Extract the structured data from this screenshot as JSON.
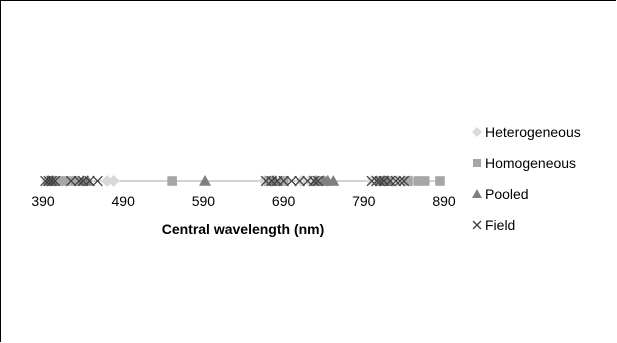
{
  "chart_data": {
    "type": "scatter",
    "title": "",
    "xlabel": "Central wavelength (nm)",
    "ylabel": "",
    "xlim": [
      390,
      890
    ],
    "xticks": [
      390,
      490,
      590,
      690,
      790,
      890
    ],
    "y_constant": 0,
    "legend_position": "right",
    "grid": false,
    "series": [
      {
        "name": "Heterogeneous",
        "marker": "diamond",
        "color": "#d9d9d9",
        "x": [
          395,
          405,
          470,
          478,
          666,
          675,
          712,
          722,
          730,
          745,
          800,
          806,
          816,
          826,
          832,
          840,
          848
        ]
      },
      {
        "name": "Homogeneous",
        "marker": "square",
        "color": "#a6a6a6",
        "x": [
          400,
          408,
          418,
          430,
          551,
          672,
          690,
          735,
          740,
          810,
          820,
          845,
          858,
          866,
          885
        ]
      },
      {
        "name": "Pooled",
        "marker": "triangle",
        "color": "#7f7f7f",
        "x": [
          397,
          402,
          440,
          446,
          592,
          677,
          680,
          730,
          740,
          745,
          752,
          815,
          820
        ]
      },
      {
        "name": "Field",
        "marker": "x",
        "color": "#404040",
        "x": [
          393,
          397,
          401,
          405,
          425,
          435,
          440,
          448,
          458,
          668,
          675,
          682,
          690,
          700,
          710,
          720,
          728,
          733,
          800,
          806,
          810,
          815,
          823,
          830,
          835,
          840
        ]
      }
    ]
  }
}
